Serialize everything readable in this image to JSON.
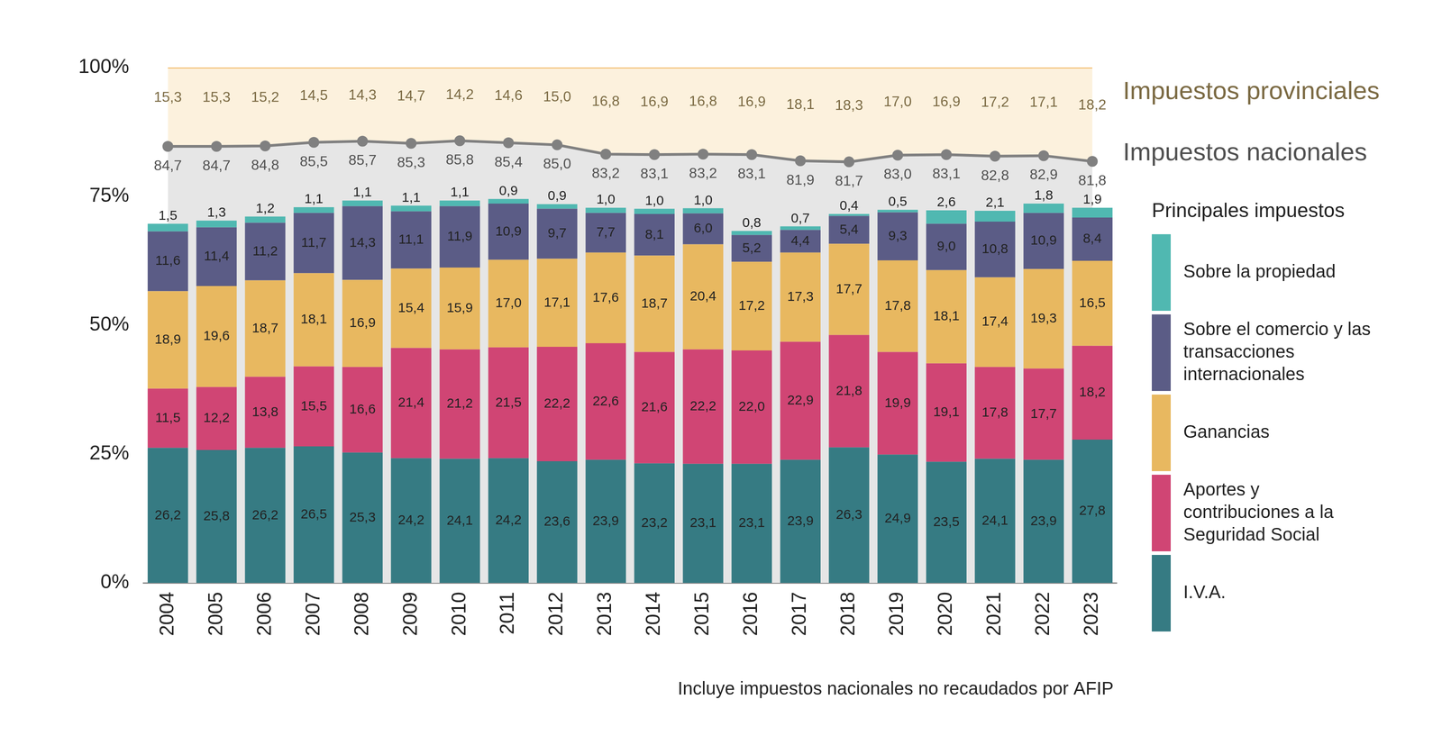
{
  "chart_data": {
    "type": "bar",
    "legend_title": "Principales impuestos",
    "note": "Incluye impuestos nacionales no recaudados por AFIP",
    "categories": [
      "2004",
      "2005",
      "2006",
      "2007",
      "2008",
      "2009",
      "2010",
      "2011",
      "2012",
      "2013",
      "2014",
      "2015",
      "2016",
      "2017",
      "2018",
      "2019",
      "2020",
      "2021",
      "2022",
      "2023"
    ],
    "series": [
      {
        "name": "I.V.A.",
        "color": "#367b83",
        "values": [
          26.2,
          25.8,
          26.2,
          26.5,
          25.3,
          24.2,
          24.1,
          24.2,
          23.6,
          23.9,
          23.2,
          23.1,
          23.1,
          23.9,
          26.3,
          24.9,
          23.5,
          24.1,
          23.9,
          27.8
        ],
        "value_labels": [
          "26,2",
          "25,8",
          "26,2",
          "26,5",
          "25,3",
          "24,2",
          "24,1",
          "24,2",
          "23,6",
          "23,9",
          "23,2",
          "23,1",
          "23,1",
          "23,9",
          "26,3",
          "24,9",
          "23,5",
          "24,1",
          "23,9",
          "27,8"
        ]
      },
      {
        "name": "Aportes y contribuciones a la Seguridad Social",
        "color": "#d04574",
        "values": [
          11.5,
          12.2,
          13.8,
          15.5,
          16.6,
          21.4,
          21.2,
          21.5,
          22.2,
          22.6,
          21.6,
          22.2,
          22.0,
          22.9,
          21.8,
          19.9,
          19.1,
          17.8,
          17.7,
          18.2
        ],
        "value_labels": [
          "11,5",
          "12,2",
          "13,8",
          "15,5",
          "16,6",
          "21,4",
          "21,2",
          "21,5",
          "22,2",
          "22,6",
          "21,6",
          "22,2",
          "22,0",
          "22,9",
          "21,8",
          "19,9",
          "19,1",
          "17,8",
          "17,7",
          "18,2"
        ]
      },
      {
        "name": "Ganancias",
        "color": "#e8b860",
        "values": [
          18.9,
          19.6,
          18.7,
          18.1,
          16.9,
          15.4,
          15.9,
          17.0,
          17.1,
          17.6,
          18.7,
          20.4,
          17.2,
          17.3,
          17.7,
          17.8,
          18.1,
          17.4,
          19.3,
          16.5
        ],
        "value_labels": [
          "18,9",
          "19,6",
          "18,7",
          "18,1",
          "16,9",
          "15,4",
          "15,9",
          "17,0",
          "17,1",
          "17,6",
          "18,7",
          "20,4",
          "17,2",
          "17,3",
          "17,7",
          "17,8",
          "18,1",
          "17,4",
          "19,3",
          "16,5"
        ]
      },
      {
        "name": "Sobre el comercio y las transacciones internacionales",
        "color": "#5b5c86",
        "values": [
          11.6,
          11.4,
          11.2,
          11.7,
          14.3,
          11.1,
          11.9,
          10.9,
          9.7,
          7.7,
          8.1,
          6.0,
          5.2,
          4.4,
          5.4,
          9.3,
          9.0,
          10.8,
          10.9,
          8.4
        ],
        "value_labels": [
          "11,6",
          "11,4",
          "11,2",
          "11,7",
          "14,3",
          "11,1",
          "11,9",
          "10,9",
          "9,7",
          "7,7",
          "8,1",
          "6,0",
          "5,2",
          "4,4",
          "5,4",
          "9,3",
          "9,0",
          "10,8",
          "10,9",
          "8,4"
        ]
      },
      {
        "name": "Sobre la propiedad",
        "color": "#50b8b1",
        "values": [
          1.5,
          1.3,
          1.2,
          1.1,
          1.1,
          1.1,
          1.1,
          0.9,
          0.9,
          1.0,
          1.0,
          1.0,
          0.8,
          0.7,
          0.4,
          0.5,
          2.6,
          2.1,
          1.8,
          1.9
        ],
        "value_labels": [
          "1,5",
          "1,3",
          "1,2",
          "1,1",
          "1,1",
          "1,1",
          "1,1",
          "0,9",
          "0,9",
          "1,0",
          "1,0",
          "1,0",
          "0,8",
          "0,7",
          "0,4",
          "0,5",
          "2,6",
          "2,1",
          "1,8",
          "1,9"
        ]
      },
      {
        "name": "Impuestos nacionales",
        "type": "line",
        "color": "#808080",
        "marker": "circle",
        "values": [
          84.7,
          84.7,
          84.8,
          85.5,
          85.7,
          85.3,
          85.8,
          85.4,
          85.0,
          83.2,
          83.1,
          83.2,
          83.1,
          81.9,
          81.7,
          83.0,
          83.1,
          82.8,
          82.9,
          81.8
        ],
        "value_labels": [
          "84,7",
          "84,7",
          "84,8",
          "85,5",
          "85,7",
          "85,3",
          "85,8",
          "85,4",
          "85,0",
          "83,2",
          "83,1",
          "83,2",
          "83,1",
          "81,9",
          "81,7",
          "83,0",
          "83,1",
          "82,8",
          "82,9",
          "81,8"
        ]
      },
      {
        "name": "Impuestos provinciales",
        "type": "line",
        "color": "#f2b45c",
        "values": [
          15.3,
          15.3,
          15.2,
          14.5,
          14.3,
          14.7,
          14.2,
          14.6,
          15.0,
          16.8,
          16.9,
          16.8,
          16.9,
          18.1,
          18.3,
          17.0,
          16.9,
          17.2,
          17.1,
          18.2
        ],
        "value_labels": [
          "15,3",
          "15,3",
          "15,2",
          "14,5",
          "14,3",
          "14,7",
          "14,2",
          "14,6",
          "15,0",
          "16,8",
          "16,9",
          "16,8",
          "16,9",
          "18,1",
          "18,3",
          "17,0",
          "16,9",
          "17,2",
          "17,1",
          "18,2"
        ]
      }
    ],
    "ylim": [
      0,
      100
    ],
    "yticks": [
      {
        "value": 0,
        "label": "0%"
      },
      {
        "value": 25,
        "label": "25%"
      },
      {
        "value": 50,
        "label": "50%"
      },
      {
        "value": 75,
        "label": "75%"
      },
      {
        "value": 100,
        "label": "100%"
      }
    ],
    "stacked": true,
    "data_labels": true,
    "grid": false,
    "legend": "right"
  }
}
